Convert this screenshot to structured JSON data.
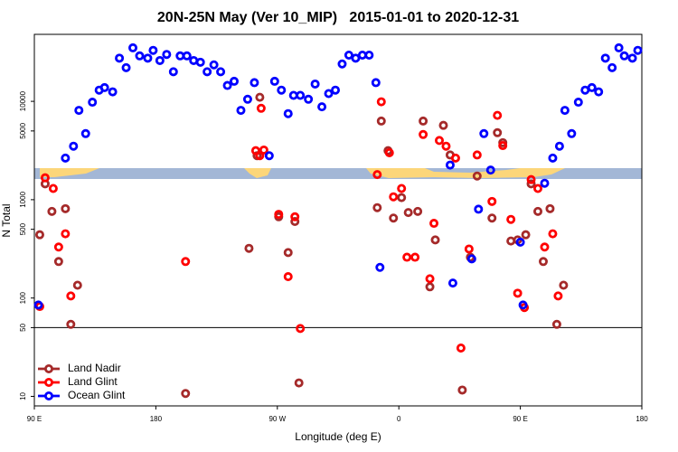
{
  "chart_data": {
    "type": "scatter",
    "title": "20N-25N May (Ver 10_MIP)   2015-01-01 to 2020-12-31",
    "xlabel": "Longitude (deg E)",
    "ylabel": "N Total",
    "xlim": [
      90,
      540
    ],
    "xticks": [
      {
        "value": 90,
        "label": "90 E"
      },
      180,
      {
        "value": 270,
        "label": "90 W"
      },
      {
        "value": 360,
        "label": "0"
      },
      {
        "value": 450,
        "label": "90 E"
      },
      {
        "value": 540,
        "label": "180"
      }
    ],
    "ylim": [
      8,
      48000
    ],
    "ylog": true,
    "yticks": [
      10,
      50,
      100,
      500,
      1000,
      5000,
      10000
    ],
    "reference_line": 50,
    "legend": "lower left",
    "series": [
      {
        "name": "Land Nadir",
        "color": "#a52a2a",
        "x": [
          94,
          98,
          103,
          108,
          113,
          117,
          122,
          202,
          249,
          255,
          257,
          271,
          278,
          283,
          286,
          344,
          347,
          352,
          356,
          362,
          367,
          374,
          378,
          383,
          387,
          393,
          398,
          407,
          413,
          418,
          429,
          433,
          437,
          443,
          448,
          454,
          458,
          463,
          467,
          472,
          477,
          482
        ],
        "values": [
          440,
          1450,
          760,
          235,
          810,
          54,
          135,
          10.7,
          320,
          2800,
          11000,
          670,
          290,
          600,
          13.7,
          830,
          6300,
          3150,
          650,
          1050,
          740,
          760,
          6300,
          130,
          390,
          5700,
          2850,
          11.6,
          260,
          1740,
          650,
          4800,
          3800,
          380,
          390,
          440,
          1450,
          760,
          235,
          810,
          54,
          135
        ]
      },
      {
        "name": "Land Glint",
        "color": "#ff0000",
        "x": [
          94,
          98,
          104,
          108,
          113,
          117,
          202,
          254,
          257,
          258,
          260,
          271,
          278,
          283,
          287,
          344,
          347,
          353,
          356,
          362,
          366,
          372,
          378,
          383,
          386,
          390,
          395,
          402,
          406,
          412,
          418,
          429,
          433,
          437,
          443,
          448,
          453,
          458,
          463,
          468,
          474,
          478
        ],
        "values": [
          82,
          1670,
          1300,
          330,
          450,
          105,
          235,
          3150,
          2800,
          8500,
          3200,
          710,
          165,
          670,
          49,
          1800,
          9900,
          3000,
          1070,
          1300,
          260,
          260,
          4600,
          157,
          575,
          4000,
          3500,
          2650,
          31,
          315,
          2850,
          960,
          7200,
          3550,
          630,
          112,
          80,
          1600,
          1300,
          330,
          450,
          105
        ]
      },
      {
        "name": "Ocean Glint",
        "color": "#0000ff",
        "x": [
          93,
          113,
          119,
          123,
          128,
          133,
          138,
          142,
          148,
          153,
          158,
          163,
          168,
          174,
          178,
          183,
          188,
          193,
          198,
          203,
          208,
          213,
          218,
          223,
          228,
          233,
          238,
          243,
          248,
          253,
          264,
          268,
          273,
          278,
          282,
          287,
          293,
          298,
          303,
          308,
          313,
          318,
          323,
          328,
          333,
          338,
          343,
          346,
          398,
          400,
          414,
          419,
          423,
          428,
          450,
          452,
          468,
          474,
          479,
          483,
          488,
          493,
          498,
          503,
          508,
          513,
          518,
          523,
          527,
          533,
          537
        ],
        "values": [
          85,
          2650,
          3500,
          8100,
          4700,
          9800,
          13000,
          13800,
          12500,
          27500,
          22000,
          35000,
          29000,
          27500,
          33000,
          26000,
          30000,
          20000,
          29000,
          29000,
          26000,
          25000,
          20000,
          23500,
          20000,
          14500,
          16000,
          8100,
          10500,
          15500,
          2800,
          16000,
          13000,
          7500,
          11500,
          11500,
          10500,
          15000,
          8800,
          12000,
          13000,
          24000,
          29500,
          27500,
          29500,
          29500,
          15500,
          205,
          2250,
          142,
          250,
          800,
          4700,
          2000,
          370,
          85,
          1470,
          2650,
          3500,
          8100,
          4700,
          9800,
          13000,
          13800,
          12500,
          27500,
          22000,
          35000,
          29000,
          27500,
          33000
        ]
      }
    ]
  }
}
